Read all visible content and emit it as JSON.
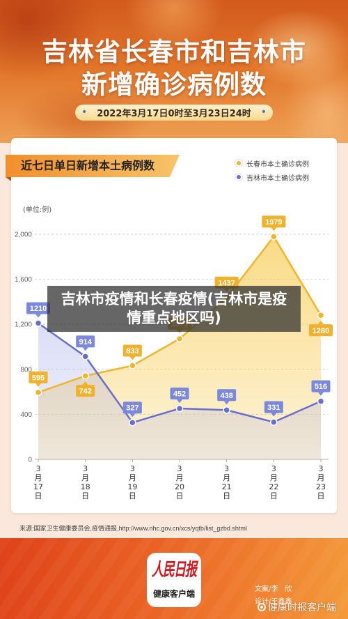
{
  "header": {
    "title_line1": "吉林省长春市和吉林市",
    "title_line2": "新增确诊病例数",
    "date_range": "2022年3月17日0时至3月23日24时",
    "bullet": "•"
  },
  "card": {
    "title": "近七日单日新增本土病例数"
  },
  "chart_data": {
    "type": "line",
    "categories": [
      "3月17日",
      "3月18日",
      "3月19日",
      "3月20日",
      "3月21日",
      "3月22日",
      "3月23日"
    ],
    "series": [
      {
        "name": "长春市本土确诊病例",
        "color": "#f0b529",
        "label_color": "#f1b12a",
        "area_color": "#f8cf5f",
        "values": [
          595,
          742,
          833,
          1071,
          1437,
          1979,
          1280
        ]
      },
      {
        "name": "吉林市本土确诊病例",
        "color": "#676ed0",
        "label_color": "#7a88dd",
        "area_color": "#9ea4ea",
        "values": [
          1210,
          914,
          327,
          452,
          438,
          331,
          516
        ]
      }
    ],
    "ylabel": "(单位:例)",
    "ylim": [
      0,
      2000
    ],
    "yticks": [
      0,
      400,
      800,
      1200,
      1600,
      2000
    ],
    "ytick_labels": [
      "0",
      "400",
      "800",
      "1,200",
      "1,600",
      "2,000"
    ],
    "grid": true,
    "legend": "top-right",
    "area_fill": true,
    "data_labels": true
  },
  "overlay": {
    "line1": "吉林市疫情和长春疫情(吉林市是疫",
    "line2": "情重点地区吗)"
  },
  "source": "来源:国家卫生健康委员会,疫情通报,http://www.nhc.gov.cn/xcs/yqtb/list_gzbd.shtml",
  "footer": {
    "logo_main": "人民日报",
    "logo_sub": "健康客户端",
    "credit_writer": "文案/李　欣",
    "credit_designer": "设计/王鑫鑫",
    "watermark": "健康时报客户端",
    "watermark_icon": "camera-icon"
  }
}
